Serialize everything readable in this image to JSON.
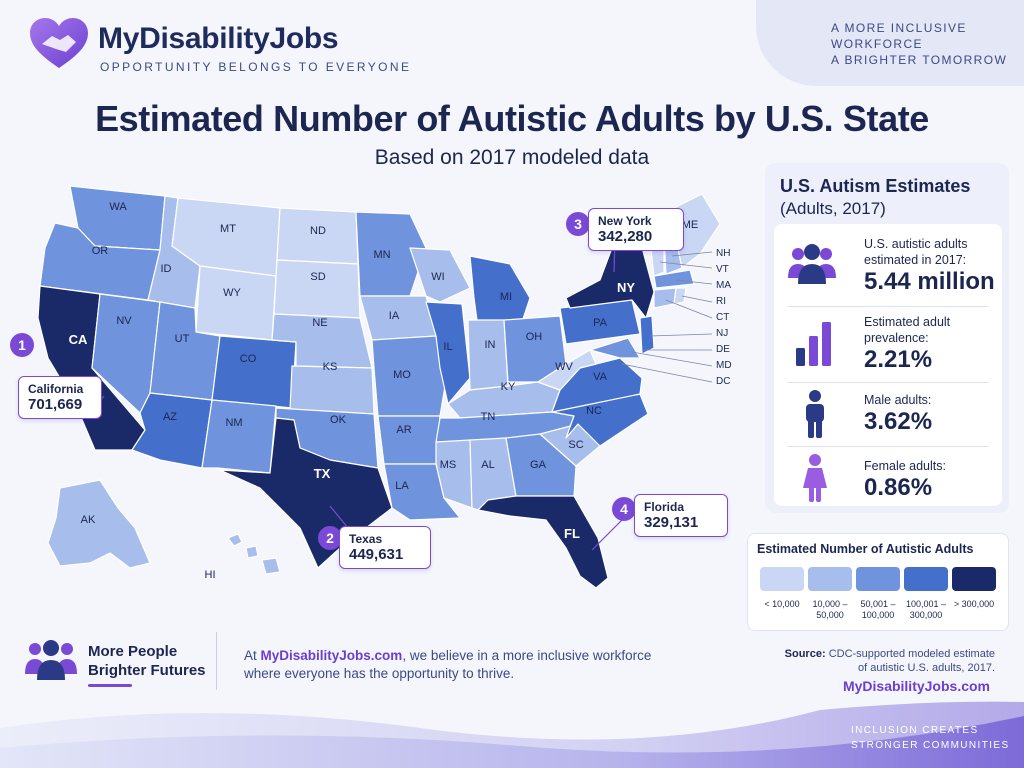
{
  "brand": {
    "name": "MyDisabilityJobs",
    "tagline": "OPPORTUNITY BELONGS TO EVERYONE",
    "top_tagline_1": "A MORE INCLUSIVE",
    "top_tagline_2": "WORKFORCE",
    "top_tagline_3": "A BRIGHTER TOMORROW"
  },
  "title": "Estimated Number of Autistic Adults by U.S. State",
  "subtitle": "Based on 2017 modeled data",
  "map": {
    "state_labels": [
      "WA",
      "OR",
      "CA",
      "NV",
      "ID",
      "MT",
      "WY",
      "UT",
      "AZ",
      "CO",
      "NM",
      "ND",
      "SD",
      "NE",
      "KS",
      "OK",
      "TX",
      "MN",
      "IA",
      "MO",
      "AR",
      "LA",
      "WI",
      "IL",
      "MI",
      "IN",
      "OH",
      "KY",
      "TN",
      "MS",
      "AL",
      "GA",
      "FL",
      "SC",
      "NC",
      "VA",
      "WV",
      "PA",
      "NY",
      "ME",
      "AK",
      "HI"
    ],
    "northeast_labels": [
      "NH",
      "VT",
      "MA",
      "RI",
      "CT",
      "NJ",
      "DE",
      "MD",
      "DC"
    ],
    "callouts": [
      {
        "rank": "1",
        "state": "California",
        "value": "701,669"
      },
      {
        "rank": "2",
        "state": "Texas",
        "value": "449,631"
      },
      {
        "rank": "3",
        "state": "New York",
        "value": "342,280"
      },
      {
        "rank": "4",
        "state": "Florida",
        "value": "329,131"
      }
    ]
  },
  "panel": {
    "title": "U.S. Autism Estimates",
    "subtitle": "(Adults, 2017)",
    "stats": [
      {
        "icon": "people-group-icon",
        "label_1": "U.S. autistic adults",
        "label_2": "estimated in 2017:",
        "value": "5.44 million"
      },
      {
        "icon": "bar-chart-icon",
        "label_1": "Estimated adult",
        "label_2": "prevalence:",
        "value": "2.21%"
      },
      {
        "icon": "male-person-icon",
        "label_1": "Male adults:",
        "label_2": "",
        "value": "3.62%"
      },
      {
        "icon": "female-person-icon",
        "label_1": "Female adults:",
        "label_2": "",
        "value": "0.86%"
      }
    ]
  },
  "legend": {
    "title": "Estimated Number of Autistic Adults",
    "bins": [
      {
        "label_1": "< 10,000",
        "label_2": "",
        "color": "#c9d7f4"
      },
      {
        "label_1": "10,000 –",
        "label_2": "50,000",
        "color": "#a7bdec"
      },
      {
        "label_1": "50,001 –",
        "label_2": "100,000",
        "color": "#6f93dc"
      },
      {
        "label_1": "100,001 –",
        "label_2": "300,000",
        "color": "#4470cc"
      },
      {
        "label_1": "> 300,000",
        "label_2": "",
        "color": "#1a2a68"
      }
    ]
  },
  "footer": {
    "heading_1": "More People",
    "heading_2": "Brighter Futures",
    "text_prefix": "At ",
    "text_site": "MyDisabilityJobs.com",
    "text_suffix": ", we believe in a more inclusive workforce",
    "text_line2": "where everyone has the opportunity to thrive.",
    "source_label": "Source:",
    "source_text": "CDC-supported modeled estimate",
    "source_text_2": "of autistic U.S. adults, 2017.",
    "site": "MyDisabilityJobs.com",
    "bottom_1": "INCLUSION CREATES",
    "bottom_2": "STRONGER COMMUNITIES"
  },
  "colors": {
    "accent": "#7a4ad6",
    "navy": "#1c2650",
    "tier1": "#c9d7f4",
    "tier2": "#a7bdec",
    "tier3": "#6f93dc",
    "tier4": "#4470cc",
    "tier5": "#1a2a68"
  }
}
